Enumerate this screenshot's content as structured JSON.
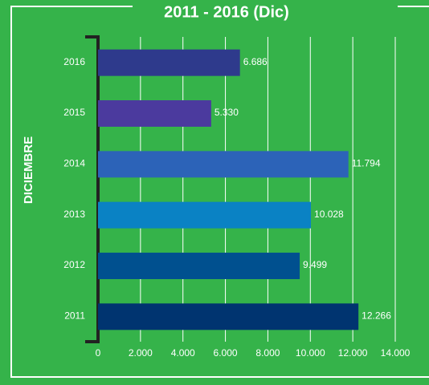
{
  "chart_data": {
    "type": "bar",
    "orientation": "horizontal",
    "title": "2011 - 2016 (Dic)",
    "y_label": "DICIEMBRE",
    "categories": [
      "2016",
      "2015",
      "2014",
      "2013",
      "2012",
      "2011"
    ],
    "values": [
      6686,
      5330,
      11794,
      10028,
      9499,
      12266
    ],
    "value_labels": [
      "6.686",
      "5.330",
      "11.794",
      "10.028",
      "9.499",
      "12.266"
    ],
    "colors": [
      "#2e3a8c",
      "#4b3a9e",
      "#2c63b8",
      "#0a82c4",
      "#00508f",
      "#003470"
    ],
    "xlim": [
      0,
      14000
    ],
    "xticks": [
      0,
      {
        "value": 2000,
        "label": "2.000"
      },
      {
        "value": 4000,
        "label": "4.000"
      },
      {
        "value": 6000,
        "label": "6.000"
      },
      {
        "value": 8000,
        "label": "8.000"
      },
      {
        "value": 10000,
        "label": "10.000"
      },
      {
        "value": 12000,
        "label": "12.000"
      },
      {
        "value": 14000,
        "label": "14.000"
      }
    ],
    "grid": true
  }
}
